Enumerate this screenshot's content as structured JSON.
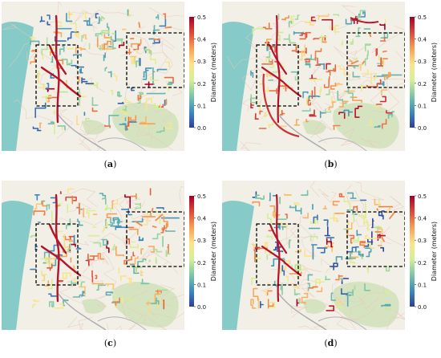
{
  "colorbar": {
    "label": "Diameter (meters)",
    "ticks": [
      "0.5",
      "0.4",
      "0.3",
      "0.2",
      "0.1",
      "0.0"
    ],
    "min": 0.0,
    "max": 0.5,
    "colormap": [
      "#2e3f9a",
      "#3d8cbf",
      "#7cc7a6",
      "#d6ef95",
      "#fde48b",
      "#f8a052",
      "#dd4a39",
      "#a50026"
    ]
  },
  "map_colors": {
    "sea": "#86cbc7",
    "land": "#f2efe7",
    "green_area": "#d5e3c1",
    "box_border": "#000000"
  },
  "panels": [
    {
      "caption_open": "(",
      "caption_letter": "a",
      "caption_close": ")"
    },
    {
      "caption_open": "(",
      "caption_letter": "b",
      "caption_close": ")"
    },
    {
      "caption_open": "(",
      "caption_letter": "c",
      "caption_close": ")"
    },
    {
      "caption_open": "(",
      "caption_letter": "d",
      "caption_close": ")"
    }
  ]
}
